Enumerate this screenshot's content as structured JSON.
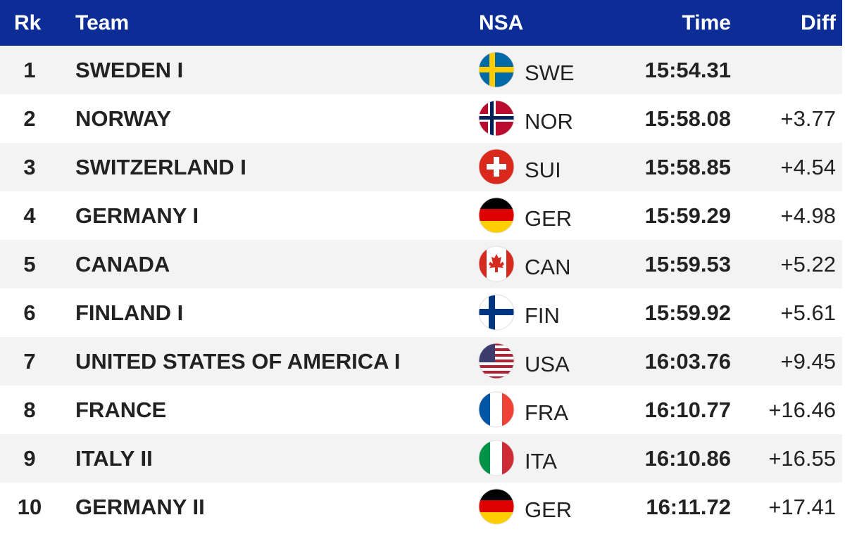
{
  "header": {
    "columns": [
      "Rk",
      "Team",
      "NSA",
      "Time",
      "Diff"
    ]
  },
  "rows": [
    {
      "rank": "1",
      "team": "SWEDEN I",
      "nsa": "SWE",
      "time": "15:54.31"
    },
    {
      "rank": "2",
      "team": "NORWAY",
      "nsa": "NOR",
      "time": "15:58.08",
      "diff": "+3.77"
    },
    {
      "rank": "3",
      "team": "SWITZERLAND I",
      "nsa": "SUI",
      "time": "15:58.85",
      "diff": "+4.54"
    },
    {
      "rank": "4",
      "team": "GERMANY I",
      "nsa": "GER",
      "time": "15:59.29",
      "diff": "+4.98"
    },
    {
      "rank": "5",
      "team": "CANADA",
      "nsa": "CAN",
      "time": "15:59.53",
      "diff": "+5.22"
    },
    {
      "rank": "6",
      "team": "FINLAND I",
      "nsa": "FIN",
      "time": "15:59.92",
      "diff": "+5.61"
    },
    {
      "rank": "7",
      "team": "UNITED STATES OF AMERICA I",
      "nsa": "USA",
      "time": "16:03.76",
      "diff": "+9.45"
    },
    {
      "rank": "8",
      "team": "FRANCE",
      "nsa": "FRA",
      "time": "16:10.77",
      "diff": "+16.46"
    },
    {
      "rank": "9",
      "team": "ITALY II",
      "nsa": "ITA",
      "time": "16:10.86",
      "diff": "+16.55"
    },
    {
      "rank": "10",
      "team": "GERMANY II",
      "nsa": "GER",
      "time": "16:11.72",
      "diff": "+17.41"
    }
  ]
}
